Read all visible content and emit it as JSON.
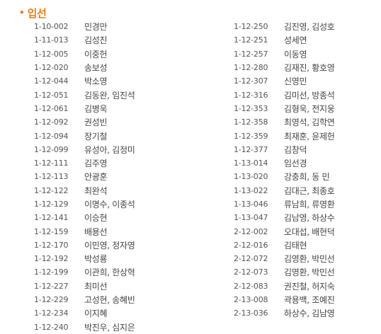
{
  "section": {
    "bullet": "•",
    "title": "입선"
  },
  "colors": {
    "accent": "#ef7d15",
    "text": "#444444"
  },
  "left_entries": [
    {
      "code": "1-10-002",
      "names": "민경만"
    },
    {
      "code": "1-11-013",
      "names": "김성진"
    },
    {
      "code": "1-12-005",
      "names": "이중헌"
    },
    {
      "code": "1-12-020",
      "names": "송보성"
    },
    {
      "code": "1-12-044",
      "names": "박소영"
    },
    {
      "code": "1-12-051",
      "names": "김동완, 임진석"
    },
    {
      "code": "1-12-061",
      "names": "김병욱"
    },
    {
      "code": "1-12-092",
      "names": "권성빈"
    },
    {
      "code": "1-12-094",
      "names": "장기철"
    },
    {
      "code": "1-12-099",
      "names": "유성아, 김정미"
    },
    {
      "code": "1-12-111",
      "names": "김주영"
    },
    {
      "code": "1-12-113",
      "names": "안광훈"
    },
    {
      "code": "1-12-122",
      "names": "최완석"
    },
    {
      "code": "1-12-129",
      "names": "이명수, 이종석"
    },
    {
      "code": "1-12-141",
      "names": "이승현"
    },
    {
      "code": "1-12-159",
      "names": "배용선"
    },
    {
      "code": "1-12-170",
      "names": "이민영, 정자영"
    },
    {
      "code": "1-12-192",
      "names": "박성룡"
    },
    {
      "code": "1-12-199",
      "names": "이관희, 한상혁"
    },
    {
      "code": "1-12-227",
      "names": "최미선"
    },
    {
      "code": "1-12-229",
      "names": "고성현, 송혜빈"
    },
    {
      "code": "1-12-234",
      "names": "이지혜"
    },
    {
      "code": "1-12-240",
      "names": "박진우, 심지은"
    }
  ],
  "right_entries": [
    {
      "code": "1-12-250",
      "names": "김진영, 김성호"
    },
    {
      "code": "1-12-251",
      "names": "성세연"
    },
    {
      "code": "1-12-257",
      "names": "이동영"
    },
    {
      "code": "1-12-280",
      "names": "김재진, 황호영"
    },
    {
      "code": "1-12-307",
      "names": "신영민"
    },
    {
      "code": "1-12-316",
      "names": "김미선, 방종석"
    },
    {
      "code": "1-12-353",
      "names": "김형욱, 전지웅"
    },
    {
      "code": "1-12-358",
      "names": "최영석, 김학연"
    },
    {
      "code": "1-12-359",
      "names": "최재훈, 윤제헌"
    },
    {
      "code": "1-12-377",
      "names": "김창덕"
    },
    {
      "code": "1-13-014",
      "names": "임선경"
    },
    {
      "code": "1-13-020",
      "names": "강충희, 동 민"
    },
    {
      "code": "1-13-022",
      "names": "김대근, 최종호"
    },
    {
      "code": "1-13-046",
      "names": "류남희, 류영환"
    },
    {
      "code": "1-13-047",
      "names": "김남영, 하상수"
    },
    {
      "code": "2-12-002",
      "names": "오대섭, 배현덕"
    },
    {
      "code": "2-12-016",
      "names": "김태현"
    },
    {
      "code": "2-12-072",
      "names": "김영환, 박민선"
    },
    {
      "code": "2-12-073",
      "names": "김영환, 박민선"
    },
    {
      "code": "2-12-083",
      "names": "권진철, 허지숙"
    },
    {
      "code": "2-13-008",
      "names": "곽용백, 조예진"
    },
    {
      "code": "2-13-036",
      "names": "하상수, 김남영"
    }
  ]
}
